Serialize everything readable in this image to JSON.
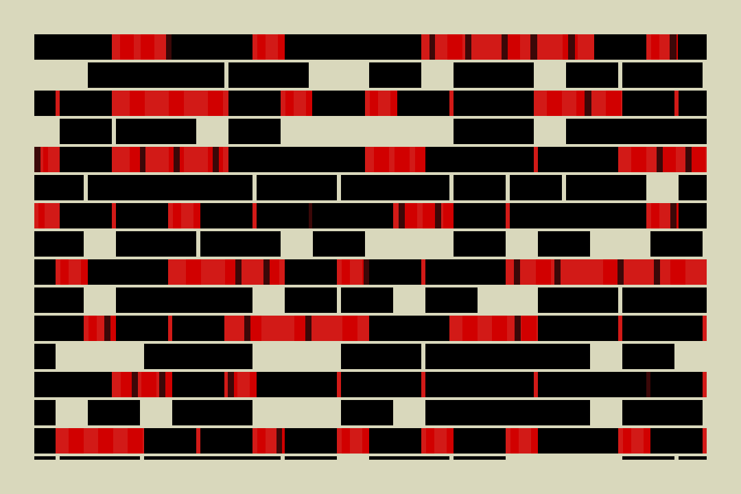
{
  "artwork": {
    "palette": {
      "background": "#d9d8bc",
      "black": "#000000",
      "red": "#d21a17",
      "bright_red": "#d10000",
      "dark_red": "#3b0808"
    }
  }
}
